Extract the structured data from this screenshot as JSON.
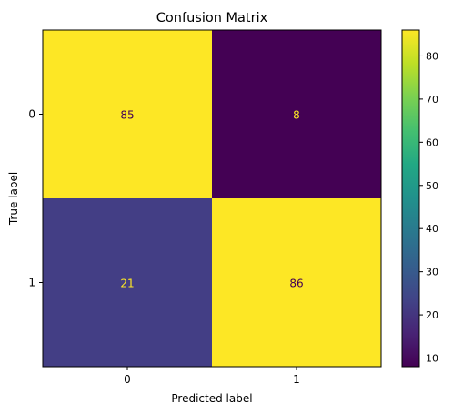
{
  "chart_data": {
    "type": "heatmap",
    "title": "Confusion Matrix",
    "xlabel": "Predicted label",
    "ylabel": "True label",
    "x_categories": [
      "0",
      "1"
    ],
    "y_categories": [
      "0",
      "1"
    ],
    "values": [
      [
        85,
        8
      ],
      [
        21,
        86
      ]
    ],
    "colormap": "viridis",
    "colorbar": {
      "range": [
        8,
        86
      ],
      "ticks": [
        10,
        20,
        30,
        40,
        50,
        60,
        70,
        80
      ]
    },
    "cell_colors": [
      [
        "#fde725",
        "#440154"
      ],
      [
        "#433e85",
        "#fde725"
      ]
    ],
    "text_colors": [
      [
        "#440154",
        "#fde725"
      ],
      [
        "#fde725",
        "#440154"
      ]
    ],
    "grid": false
  }
}
